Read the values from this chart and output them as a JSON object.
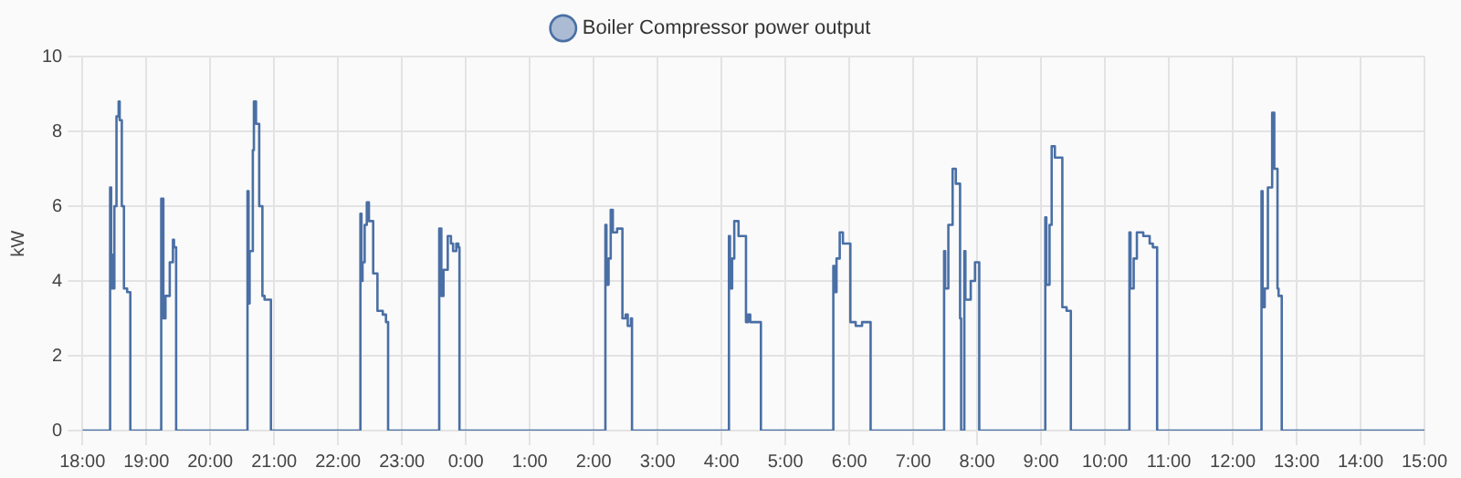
{
  "chart_data": {
    "type": "step",
    "ylabel": "kW",
    "legend": "top",
    "grid": true,
    "marker": "none",
    "line_style": "solid",
    "ylim": [
      0,
      10
    ],
    "yticks": [
      0,
      2,
      4,
      6,
      8,
      10
    ],
    "xlim": [
      "--01-01T18:00",
      "--01-02T15:00"
    ],
    "xticks": [
      {
        "value": "--01-01T18:00",
        "label": "18:00"
      },
      {
        "value": "--01-01T19:00",
        "label": "19:00"
      },
      {
        "value": "--01-01T20:00",
        "label": "20:00"
      },
      {
        "value": "--01-01T21:00",
        "label": "21:00"
      },
      {
        "value": "--01-01T22:00",
        "label": "22:00"
      },
      {
        "value": "--01-01T23:00",
        "label": "23:00"
      },
      {
        "value": "--01-02T00:00",
        "label": "0:00"
      },
      {
        "value": "--01-02T01:00",
        "label": "1:00"
      },
      {
        "value": "--01-02T02:00",
        "label": "2:00"
      },
      {
        "value": "--01-02T03:00",
        "label": "3:00"
      },
      {
        "value": "--01-02T04:00",
        "label": "4:00"
      },
      {
        "value": "--01-02T05:00",
        "label": "5:00"
      },
      {
        "value": "--01-02T06:00",
        "label": "6:00"
      },
      {
        "value": "--01-02T07:00",
        "label": "7:00"
      },
      {
        "value": "--01-02T08:00",
        "label": "8:00"
      },
      {
        "value": "--01-02T09:00",
        "label": "9:00"
      },
      {
        "value": "--01-02T10:00",
        "label": "10:00"
      },
      {
        "value": "--01-02T11:00",
        "label": "11:00"
      },
      {
        "value": "--01-02T12:00",
        "label": "12:00"
      },
      {
        "value": "--01-02T13:00",
        "label": "13:00"
      },
      {
        "value": "--01-02T14:00",
        "label": "14:00"
      },
      {
        "value": "--01-02T15:00",
        "label": "15:00"
      }
    ],
    "series": [
      {
        "name": "Boiler Compressor power output",
        "color": "#4a6fa5",
        "x": [
          "--01-01T18:00",
          "--01-01T18:26",
          "--01-01T18:27",
          "--01-01T18:28",
          "--01-01T18:29",
          "--01-01T18:30",
          "--01-01T18:32",
          "--01-01T18:34",
          "--01-01T18:35",
          "--01-01T18:37",
          "--01-01T18:39",
          "--01-01T18:42",
          "--01-01T18:45",
          "--01-01T19:14",
          "--01-01T19:16",
          "--01-01T19:18",
          "--01-01T19:22",
          "--01-01T19:25",
          "--01-01T19:26",
          "--01-01T19:28",
          "--01-01T20:35",
          "--01-01T20:36",
          "--01-01T20:37",
          "--01-01T20:40",
          "--01-01T20:41",
          "--01-01T20:43",
          "--01-01T20:46",
          "--01-01T20:49",
          "--01-01T20:51",
          "--01-01T20:57",
          "--01-01T22:21",
          "--01-01T22:22",
          "--01-01T22:23",
          "--01-01T22:25",
          "--01-01T22:27",
          "--01-01T22:29",
          "--01-01T22:33",
          "--01-01T22:37",
          "--01-01T22:42",
          "--01-01T22:45",
          "--01-01T22:47",
          "--01-01T23:35",
          "--01-01T23:37",
          "--01-01T23:39",
          "--01-01T23:43",
          "--01-01T23:46",
          "--01-01T23:48",
          "--01-01T23:51",
          "--01-01T23:53",
          "--01-01T23:54",
          "--01-02T02:11",
          "--01-02T02:12",
          "--01-02T02:14",
          "--01-02T02:16",
          "--01-02T02:18",
          "--01-02T02:22",
          "--01-02T02:27",
          "--01-02T02:30",
          "--01-02T02:32",
          "--01-02T02:35",
          "--01-02T02:36",
          "--01-02T04:07",
          "--01-02T04:08",
          "--01-02T04:10",
          "--01-02T04:12",
          "--01-02T04:16",
          "--01-02T04:23",
          "--01-02T04:25",
          "--01-02T04:27",
          "--01-02T04:37",
          "--01-02T05:45",
          "--01-02T05:46",
          "--01-02T05:48",
          "--01-02T05:51",
          "--01-02T05:54",
          "--01-02T06:01",
          "--01-02T06:06",
          "--01-02T06:12",
          "--01-02T06:20",
          "--01-02T07:29",
          "--01-02T07:30",
          "--01-02T07:33",
          "--01-02T07:37",
          "--01-02T07:40",
          "--01-02T07:44",
          "--01-02T07:45",
          "--01-02T07:48",
          "--01-02T07:49",
          "--01-02T07:54",
          "--01-02T07:58",
          "--01-02T08:02",
          "--01-02T09:04",
          "--01-02T09:05",
          "--01-02T09:08",
          "--01-02T09:10",
          "--01-02T09:13",
          "--01-02T09:20",
          "--01-02T09:24",
          "--01-02T09:28",
          "--01-02T10:23",
          "--01-02T10:24",
          "--01-02T10:27",
          "--01-02T10:30",
          "--01-02T10:36",
          "--01-02T10:42",
          "--01-02T10:45",
          "--01-02T10:49",
          "--01-02T12:27",
          "--01-02T12:28",
          "--01-02T12:30",
          "--01-02T12:33",
          "--01-02T12:37",
          "--01-02T12:39",
          "--01-02T12:42",
          "--01-02T12:43",
          "--01-02T12:46",
          "--01-02T15:00"
        ],
        "values": [
          0,
          6.5,
          3.8,
          4.7,
          3.8,
          6.0,
          8.4,
          8.8,
          8.3,
          6.0,
          3.8,
          3.7,
          0,
          6.2,
          3.0,
          3.6,
          4.5,
          5.1,
          4.9,
          0,
          6.4,
          3.4,
          4.8,
          7.5,
          8.8,
          8.2,
          6.0,
          3.6,
          3.5,
          0,
          5.8,
          4.0,
          4.5,
          5.5,
          6.1,
          5.6,
          4.2,
          3.2,
          3.1,
          2.9,
          0,
          5.4,
          3.6,
          4.3,
          5.2,
          5.0,
          4.8,
          5.0,
          4.9,
          0,
          5.5,
          3.9,
          4.6,
          5.9,
          5.3,
          5.4,
          3.0,
          3.1,
          2.8,
          3.0,
          0,
          5.2,
          3.8,
          4.6,
          5.6,
          5.2,
          2.9,
          3.1,
          2.9,
          0,
          4.4,
          3.7,
          4.6,
          5.3,
          5.0,
          2.9,
          2.8,
          2.9,
          0,
          4.8,
          3.8,
          5.5,
          7.0,
          6.6,
          3.0,
          0,
          4.8,
          3.5,
          4.0,
          4.5,
          0,
          5.7,
          3.9,
          5.5,
          7.6,
          7.3,
          3.3,
          3.2,
          0,
          5.3,
          3.8,
          4.6,
          5.3,
          5.2,
          5.0,
          4.9,
          0,
          6.4,
          3.3,
          3.8,
          6.5,
          8.5,
          7.0,
          3.8,
          3.6,
          0,
          0
        ]
      }
    ]
  }
}
